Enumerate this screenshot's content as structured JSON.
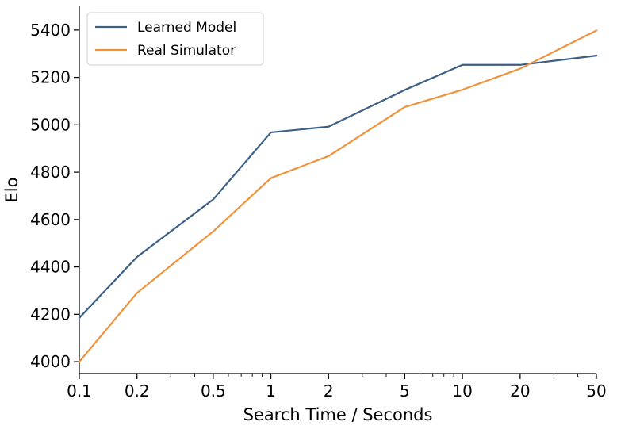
{
  "chart_data": {
    "type": "line",
    "xscale": "log",
    "xlabel": "Search Time / Seconds",
    "ylabel": "Elo",
    "xlim": [
      0.1,
      50
    ],
    "ylim": [
      3950,
      5500
    ],
    "xticks": [
      0.1,
      0.2,
      0.5,
      1,
      2,
      5,
      10,
      20,
      50
    ],
    "xtick_labels": [
      "0.1",
      "0.2",
      "0.5",
      "1",
      "2",
      "5",
      "10",
      "20",
      "50"
    ],
    "yticks": [
      4000,
      4200,
      4400,
      4600,
      4800,
      5000,
      5200,
      5400
    ],
    "ytick_labels": [
      "4000",
      "4200",
      "4400",
      "4600",
      "4800",
      "5000",
      "5200",
      "5400"
    ],
    "x": [
      0.1,
      0.2,
      0.5,
      1,
      2,
      5,
      10,
      20,
      50
    ],
    "series": [
      {
        "name": "Learned Model",
        "color": "#3c5f86",
        "values": [
          4185,
          4442,
          4685,
          4968,
          4992,
          5147,
          5253,
          5253,
          5292
        ]
      },
      {
        "name": "Real Simulator",
        "color": "#f0923b",
        "values": [
          4000,
          4290,
          4550,
          4775,
          4868,
          5075,
          5148,
          5237,
          5398
        ]
      }
    ],
    "legend_position": "top-left",
    "grid": false,
    "spines": [
      "left",
      "bottom"
    ]
  }
}
